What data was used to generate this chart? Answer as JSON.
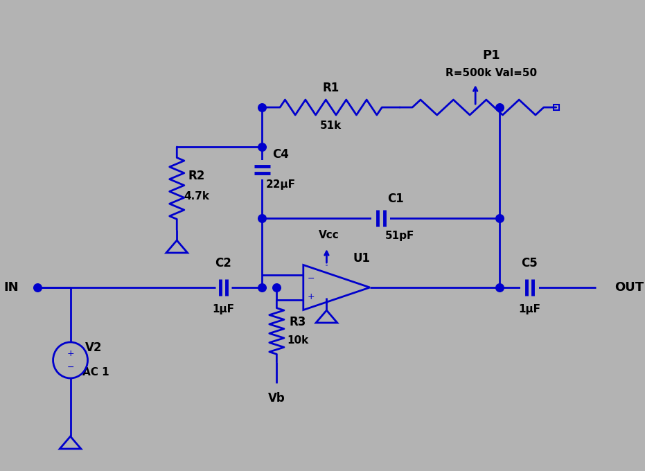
{
  "bg_color": "#b3b3b3",
  "wire_color": "#0000cc",
  "text_color": "#000000",
  "lw": 2.0,
  "fs_label": 12,
  "fs_value": 11,
  "components": {
    "IN": "IN",
    "OUT": "OUT",
    "R1_label": "R1",
    "R1_val": "51k",
    "R2_label": "R2",
    "R2_val": "4.7k",
    "R3_label": "R3",
    "R3_val": "10k",
    "C1_label": "C1",
    "C1_val": "51pF",
    "C2_label": "C2",
    "C2_val": "1μF",
    "C4_label": "C4",
    "C4_val": "22μF",
    "C5_label": "C5",
    "C5_val": "1μF",
    "P1_label": "P1",
    "P1_val": "R=500k Val=50",
    "U1_label": "U1",
    "V2_label": "V2",
    "V2_val": "AC 1",
    "Vb_label": "Vb",
    "Vcc_label": "Vcc"
  }
}
